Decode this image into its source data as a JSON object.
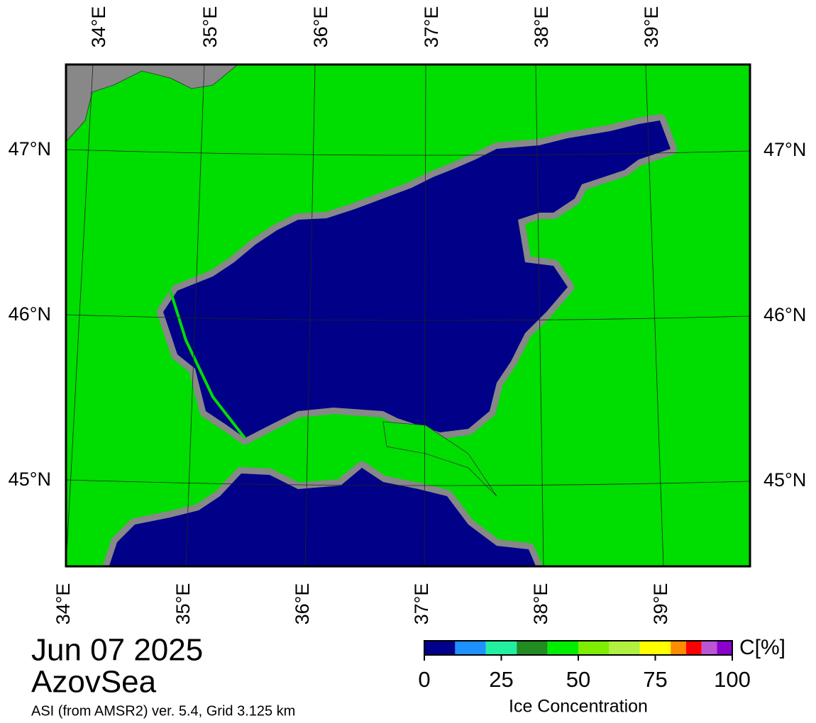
{
  "map": {
    "top_lon_labels": [
      "34°E",
      "35°E",
      "36°E",
      "37°E",
      "38°E",
      "39°E"
    ],
    "bottom_lon_labels": [
      "34°E",
      "35°E",
      "36°E",
      "37°E",
      "38°E",
      "39°E"
    ],
    "left_lat_labels": [
      "47°N",
      "46°N",
      "45°N"
    ],
    "right_lat_labels": [
      "47°N",
      "46°N",
      "45°N"
    ]
  },
  "footer": {
    "date": "Jun 07 2025",
    "region": "AzovSea",
    "product": "ASI (from AMSR2) ver. 5.4,  Grid 3.125 km"
  },
  "colorbar": {
    "bounds": [
      0,
      10,
      20,
      30,
      40,
      50,
      60,
      70,
      80,
      85,
      90,
      95,
      100
    ],
    "colors": [
      "#00008b",
      "#1e90ff",
      "#22f0a0",
      "#228b22",
      "#00ee00",
      "#7fee00",
      "#b0f040",
      "#ffff00",
      "#ff8c00",
      "#ff0000",
      "#ba55d3",
      "#8a00cc"
    ],
    "ticks": [
      0,
      25,
      50,
      75,
      100
    ],
    "label": "Ice Concentration",
    "unit": "C[%]"
  }
}
